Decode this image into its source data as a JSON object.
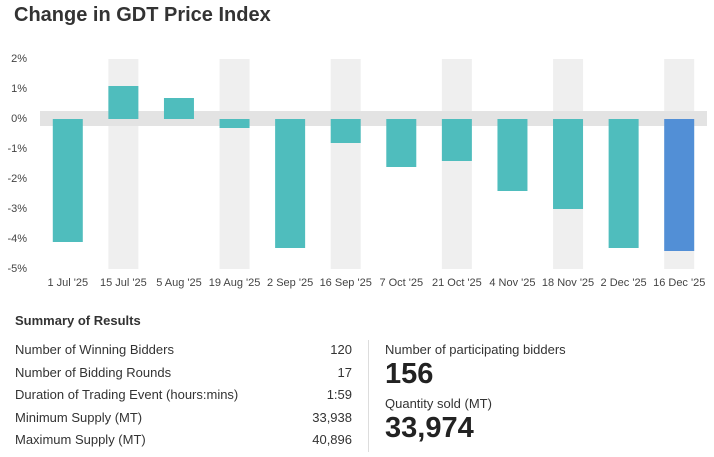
{
  "chart_data": {
    "type": "bar",
    "title": "Change in GDT Price Index",
    "categories": [
      "1 Jul '25",
      "15 Jul '25",
      "5 Aug '25",
      "19 Aug '25",
      "2 Sep '25",
      "16 Sep '25",
      "7 Oct '25",
      "21 Oct '25",
      "4 Nov '25",
      "18 Nov '25",
      "2 Dec '25",
      "16 Dec '25"
    ],
    "values": [
      -4.1,
      1.1,
      0.7,
      -0.3,
      -4.3,
      -0.8,
      -1.6,
      -1.4,
      -2.4,
      -3.0,
      -4.3,
      -4.4
    ],
    "colors": [
      "#4fbdbd",
      "#4fbdbd",
      "#4fbdbd",
      "#4fbdbd",
      "#4fbdbd",
      "#4fbdbd",
      "#4fbdbd",
      "#4fbdbd",
      "#4fbdbd",
      "#4fbdbd",
      "#4fbdbd",
      "#528fd6"
    ],
    "ylim": [
      -5,
      2
    ],
    "yticks": [
      {
        "value": 2,
        "label": "2%"
      },
      {
        "value": 1,
        "label": "1%"
      },
      {
        "value": 0,
        "label": "0%"
      },
      {
        "value": -1,
        "label": "-1%"
      },
      {
        "value": -2,
        "label": "-2%"
      },
      {
        "value": -3,
        "label": "-3%"
      },
      {
        "value": -4,
        "label": "-4%"
      },
      {
        "value": -5,
        "label": "-5%"
      }
    ]
  },
  "summary": {
    "title": "Summary of Results",
    "rows": [
      [
        "Number of Winning Bidders",
        "120"
      ],
      [
        "Number of Bidding Rounds",
        "17"
      ],
      [
        "Duration of Trading Event (hours:mins)",
        "1:59"
      ],
      [
        "Minimum Supply (MT)",
        "33,938"
      ],
      [
        "Maximum Supply (MT)",
        "40,896"
      ]
    ],
    "stats": [
      {
        "label": "Number of participating bidders",
        "value": "156"
      },
      {
        "label": "Quantity sold (MT)",
        "value": "33,974"
      }
    ]
  }
}
